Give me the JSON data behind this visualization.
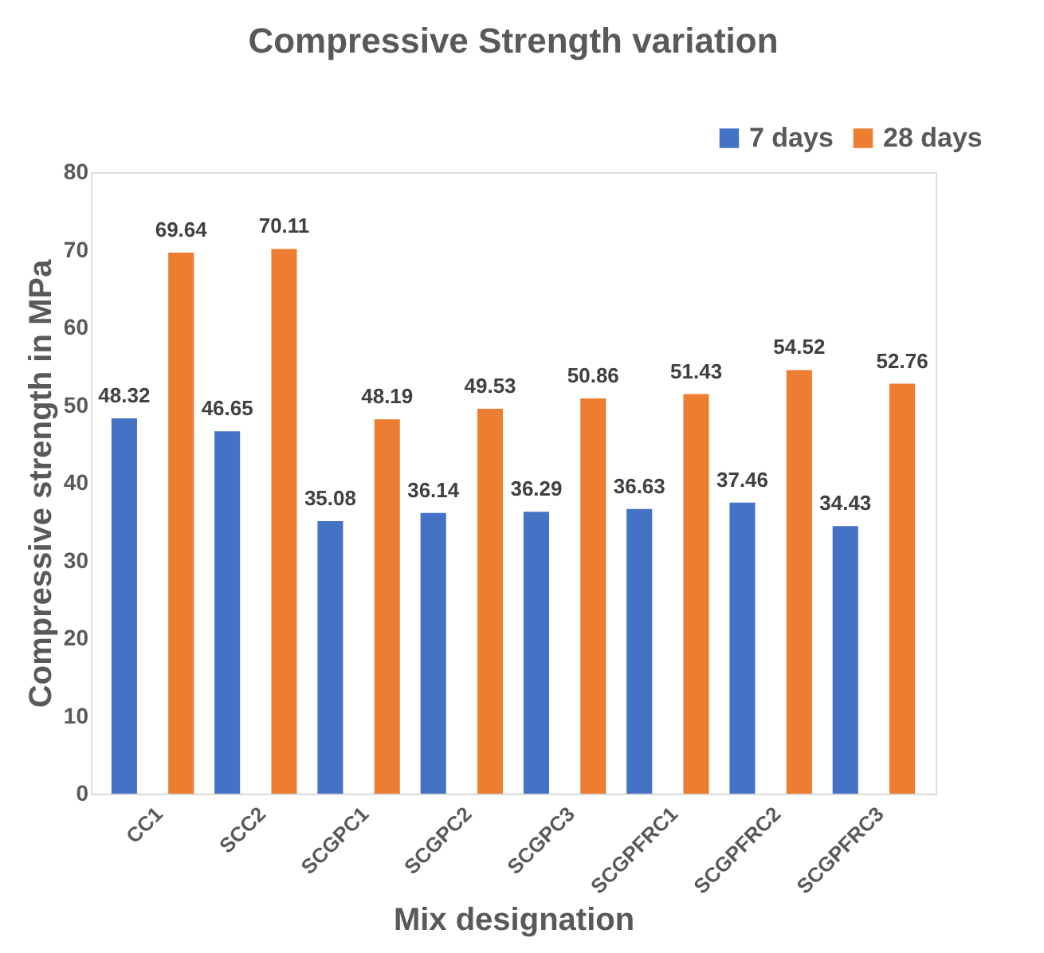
{
  "chart_data": {
    "type": "bar",
    "title": "Compressive Strength variation",
    "xlabel": "Mix designation",
    "ylabel": "Compressive strength in MPa",
    "categories": [
      "CC1",
      "SCC2",
      "SCGPC1",
      "SCGPC2",
      "SCGPC3",
      "SCGPFRC1",
      "SCGPFRC2",
      "SCGPFRC3"
    ],
    "series": [
      {
        "name": "7 days",
        "color": "#4472c4",
        "values": [
          48.32,
          46.65,
          35.08,
          36.14,
          36.29,
          36.63,
          37.46,
          34.43
        ]
      },
      {
        "name": "28 days",
        "color": "#ed7d31",
        "values": [
          69.64,
          70.11,
          48.19,
          49.53,
          50.86,
          51.43,
          54.52,
          52.76
        ]
      }
    ],
    "ylim": [
      0,
      80
    ],
    "yticks": [
      0,
      10,
      20,
      30,
      40,
      50,
      60,
      70,
      80
    ],
    "grid": false,
    "legend": "top right",
    "data_labels": true
  }
}
